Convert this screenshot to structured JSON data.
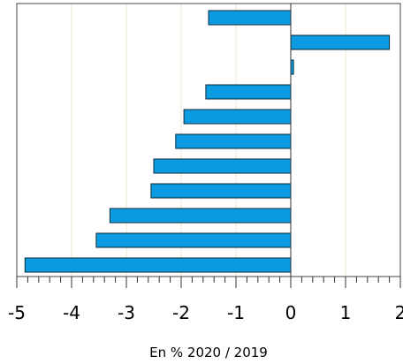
{
  "chart_data": {
    "type": "bar",
    "orientation": "horizontal",
    "series": [
      {
        "values": [
          -1.5,
          1.8,
          0.05,
          -1.55,
          -1.95,
          -2.1,
          -2.5,
          -2.55,
          -3.3,
          -3.55,
          -4.85
        ]
      }
    ],
    "xlim": [
      -5,
      2
    ],
    "x_ticks": [
      "-5",
      "-4",
      "-3",
      "-2",
      "-1",
      "0",
      "1",
      "2"
    ],
    "xlabel": "En % 2020 / 2019",
    "ylabel": "",
    "title": "",
    "grid": "vertical",
    "legend": "none",
    "colors": {
      "bar_fill": "#0a9be0",
      "bar_stroke": "#0b2a3c",
      "grid": "#e8ead0",
      "axis": "#333333"
    }
  }
}
